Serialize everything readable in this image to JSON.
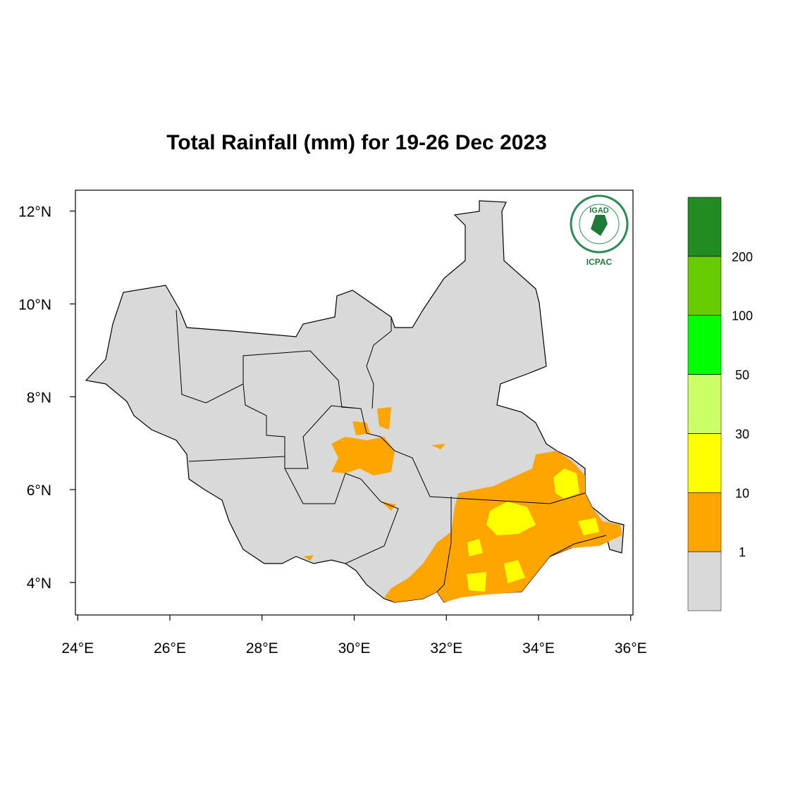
{
  "map": {
    "title": "Total Rainfall (mm) for 19-26 Dec 2023",
    "xlim": [
      23.95,
      36.05
    ],
    "ylim": [
      3.3,
      12.45
    ],
    "xticks": [
      {
        "value": 24,
        "label": "24°E"
      },
      {
        "value": 26,
        "label": "26°E"
      },
      {
        "value": 28,
        "label": "28°E"
      },
      {
        "value": 30,
        "label": "30°E"
      },
      {
        "value": 32,
        "label": "32°E"
      },
      {
        "value": 34,
        "label": "34°E"
      },
      {
        "value": 36,
        "label": "36°E"
      }
    ],
    "yticks": [
      {
        "value": 4,
        "label": "4°N"
      },
      {
        "value": 6,
        "label": "6°N"
      },
      {
        "value": 8,
        "label": "8°N"
      },
      {
        "value": 10,
        "label": "10°N"
      },
      {
        "value": 12,
        "label": "12°N"
      }
    ],
    "legend": {
      "levels": [
        1,
        10,
        30,
        50,
        100,
        200
      ],
      "colors": [
        "#d9d9d9",
        "#ffa500",
        "#ffff00",
        "#ccff66",
        "#00ff00",
        "#66cc00",
        "#228b22"
      ]
    },
    "logo": {
      "title": "IGAD",
      "caption": "ICPAC"
    }
  }
}
